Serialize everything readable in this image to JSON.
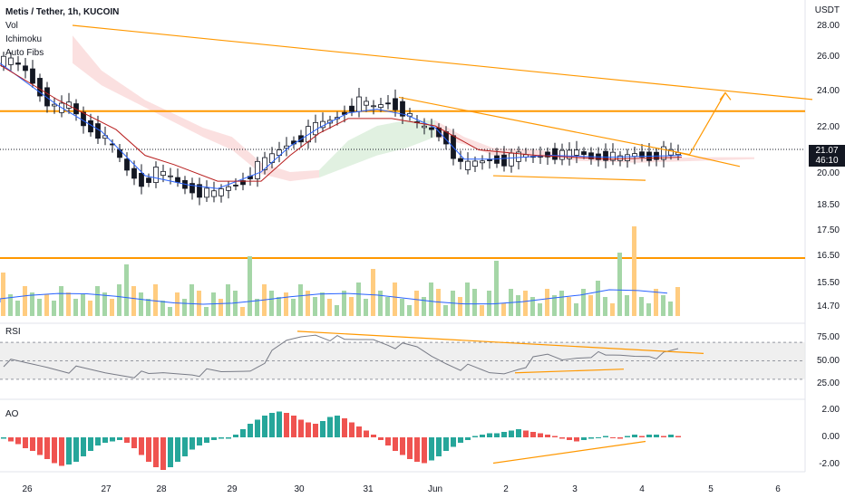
{
  "header": {
    "symbol_line": "Metis / Tether, 1h, KUCOIN",
    "indicators": [
      "Vol",
      "Ichimoku",
      "Auto Fibs"
    ],
    "price_unit": "USDT"
  },
  "current_price": {
    "value": "21.07",
    "countdown": "46:10"
  },
  "panes": {
    "rsi_label": "RSI",
    "ao_label": "AO"
  },
  "colors": {
    "bull": "#26a69a",
    "bear": "#ef5350",
    "drawing": "#ff9800",
    "tenkan": "#2962ff",
    "kijun": "#b71c1c",
    "cloud_bear": "#f7c6c6",
    "cloud_bull": "#c8e6c9",
    "vol_bull": "#a5d6a7",
    "vol_bear": "#ffcc80",
    "vol_ma": "#2962ff",
    "rsi_line": "#787b86"
  },
  "chart_data": {
    "type": "candlestick",
    "x_ticks": [
      "26",
      "27",
      "28",
      "29",
      "30",
      "31",
      "Jun",
      "2",
      "3",
      "4",
      "5",
      "6"
    ],
    "price_axis": {
      "ticks": [
        28.0,
        26.0,
        24.0,
        22.0,
        20.0,
        18.5,
        17.5,
        16.5,
        15.5,
        14.7
      ],
      "labels": [
        "28.00",
        "26.00",
        "24.00",
        "22.00",
        "20.00",
        "18.50",
        "17.50",
        "16.50",
        "15.50",
        "14.70"
      ]
    },
    "price_path": [
      [
        0,
        26.1
      ],
      [
        2,
        26.1
      ],
      [
        4,
        25.6
      ],
      [
        6,
        24.4
      ],
      [
        8,
        23.5
      ],
      [
        10,
        23.8
      ],
      [
        12,
        22.7
      ],
      [
        14,
        22.2
      ],
      [
        16,
        21.4
      ],
      [
        18,
        20.2
      ],
      [
        20,
        19.5
      ],
      [
        22,
        20.1
      ],
      [
        24,
        19.8
      ],
      [
        26,
        19.3
      ],
      [
        28,
        19.0
      ],
      [
        30,
        18.9
      ],
      [
        32,
        19.3
      ],
      [
        34,
        19.6
      ],
      [
        36,
        20.4
      ],
      [
        38,
        21.0
      ],
      [
        40,
        21.6
      ],
      [
        42,
        22.0
      ],
      [
        44,
        22.6
      ],
      [
        46,
        22.9
      ],
      [
        48,
        23.4
      ],
      [
        50,
        23.9
      ],
      [
        52,
        23.6
      ],
      [
        54,
        23.9
      ],
      [
        56,
        23.4
      ],
      [
        58,
        22.6
      ],
      [
        60,
        22.4
      ],
      [
        62,
        21.8
      ],
      [
        64,
        20.4
      ],
      [
        66,
        20.6
      ],
      [
        68,
        20.8
      ],
      [
        70,
        20.7
      ],
      [
        72,
        21.0
      ],
      [
        74,
        20.9
      ],
      [
        76,
        21.1
      ],
      [
        78,
        21.0
      ],
      [
        80,
        21.2
      ],
      [
        82,
        20.9
      ],
      [
        84,
        21.0
      ],
      [
        86,
        20.8
      ],
      [
        88,
        21.1
      ],
      [
        90,
        20.9
      ],
      [
        92,
        21.2
      ],
      [
        94,
        21.07
      ]
    ],
    "ichimoku": {
      "tenkan": [
        [
          0,
          26.0
        ],
        [
          8,
          23.7
        ],
        [
          14,
          22.3
        ],
        [
          20,
          19.9
        ],
        [
          26,
          19.4
        ],
        [
          30,
          19.2
        ],
        [
          36,
          20.1
        ],
        [
          40,
          21.5
        ],
        [
          44,
          22.5
        ],
        [
          48,
          23.3
        ],
        [
          52,
          23.5
        ],
        [
          56,
          23.2
        ],
        [
          60,
          22.5
        ],
        [
          64,
          20.8
        ],
        [
          68,
          20.8
        ],
        [
          76,
          21.0
        ],
        [
          84,
          20.9
        ],
        [
          94,
          21.0
        ]
      ],
      "kijun": [
        [
          0,
          25.9
        ],
        [
          8,
          24.0
        ],
        [
          16,
          22.4
        ],
        [
          20,
          21.0
        ],
        [
          24,
          20.5
        ],
        [
          30,
          19.6
        ],
        [
          36,
          19.6
        ],
        [
          40,
          21.0
        ],
        [
          44,
          22.2
        ],
        [
          48,
          23.0
        ],
        [
          54,
          23.0
        ],
        [
          60,
          22.6
        ],
        [
          66,
          21.3
        ],
        [
          74,
          21.0
        ],
        [
          84,
          20.8
        ],
        [
          94,
          20.9
        ]
      ],
      "cloud_a": [
        [
          10,
          27.5
        ],
        [
          14,
          25.6
        ],
        [
          20,
          24.0
        ],
        [
          28,
          22.5
        ],
        [
          32,
          22.0
        ],
        [
          36,
          20.6
        ],
        [
          40,
          20.1
        ],
        [
          44,
          20.2
        ],
        [
          48,
          21.8
        ],
        [
          52,
          22.6
        ],
        [
          56,
          22.9
        ],
        [
          60,
          22.9
        ],
        [
          64,
          22.0
        ],
        [
          68,
          21.4
        ],
        [
          74,
          21.3
        ],
        [
          80,
          21.0
        ],
        [
          88,
          20.8
        ],
        [
          96,
          20.9
        ],
        [
          104,
          20.9
        ]
      ],
      "cloud_b": [
        [
          10,
          26.0
        ],
        [
          14,
          24.8
        ],
        [
          20,
          23.6
        ],
        [
          28,
          22.0
        ],
        [
          32,
          21.3
        ],
        [
          36,
          20.0
        ],
        [
          40,
          19.6
        ],
        [
          44,
          19.8
        ],
        [
          48,
          20.4
        ],
        [
          52,
          21.0
        ],
        [
          56,
          21.4
        ],
        [
          60,
          22.0
        ],
        [
          64,
          21.6
        ],
        [
          68,
          21.0
        ],
        [
          74,
          20.9
        ],
        [
          80,
          20.7
        ],
        [
          88,
          20.6
        ],
        [
          96,
          20.7
        ],
        [
          104,
          20.8
        ]
      ]
    },
    "levels": [
      23.4,
      16.5
    ],
    "trendlines": [
      {
        "from": [
          10,
          28.05
        ],
        "to": [
          112,
          24.03
        ]
      },
      {
        "from": [
          55,
          24.15
        ],
        "to": [
          95,
          21.05
        ]
      },
      {
        "from": [
          68,
          19.9
        ],
        "to": [
          89,
          19.65
        ]
      },
      {
        "from": [
          93,
          21.2
        ],
        "to": [
          102,
          20.4
        ]
      },
      {
        "from": [
          95,
          21.0
        ],
        "to": [
          100,
          24.4
        ]
      }
    ],
    "volume_bars": 94,
    "rsi": {
      "axis": [
        75.0,
        50.0,
        25.0
      ],
      "band": [
        70,
        30
      ],
      "path": [
        [
          0,
          48
        ],
        [
          3,
          46
        ],
        [
          6,
          44
        ],
        [
          10,
          40
        ],
        [
          14,
          37
        ],
        [
          18,
          36
        ],
        [
          20,
          33
        ],
        [
          22,
          36
        ],
        [
          26,
          38
        ],
        [
          30,
          36
        ],
        [
          34,
          41
        ],
        [
          37,
          57
        ],
        [
          39,
          70
        ],
        [
          41,
          76
        ],
        [
          43,
          80
        ],
        [
          45,
          76
        ],
        [
          47,
          70
        ],
        [
          49,
          72
        ],
        [
          51,
          74
        ],
        [
          53,
          70
        ],
        [
          55,
          65
        ],
        [
          57,
          63
        ],
        [
          59,
          55
        ],
        [
          61,
          49
        ],
        [
          63,
          44
        ],
        [
          65,
          40
        ],
        [
          67,
          36
        ],
        [
          69,
          37
        ],
        [
          71,
          44
        ],
        [
          73,
          50
        ],
        [
          75,
          55
        ],
        [
          77,
          51
        ],
        [
          79,
          55
        ],
        [
          81,
          58
        ],
        [
          83,
          53
        ],
        [
          85,
          55
        ],
        [
          87,
          56
        ],
        [
          89,
          58
        ],
        [
          91,
          55
        ],
        [
          93,
          61
        ],
        [
          94,
          57
        ]
      ],
      "trendlines": [
        {
          "from": [
            41,
            82
          ],
          "to": [
            97,
            58
          ]
        },
        {
          "from": [
            71,
            37
          ],
          "to": [
            86,
            41
          ]
        }
      ]
    },
    "ao": {
      "axis": [
        2.0,
        0.0,
        -2.0
      ],
      "ylim": [
        -2.6,
        2.6
      ],
      "values": [
        -0.1,
        -0.3,
        -0.5,
        -0.8,
        -1.0,
        -1.3,
        -1.6,
        -1.9,
        -2.1,
        -2.0,
        -1.8,
        -1.4,
        -1.0,
        -0.6,
        -0.4,
        -0.3,
        -0.2,
        -0.4,
        -0.8,
        -1.3,
        -1.8,
        -2.2,
        -2.4,
        -2.2,
        -1.8,
        -1.4,
        -0.9,
        -0.6,
        -0.4,
        -0.2,
        -0.1,
        -0.1,
        0.2,
        0.6,
        1.0,
        1.3,
        1.6,
        1.8,
        1.9,
        1.8,
        1.6,
        1.3,
        1.1,
        1.0,
        1.2,
        1.5,
        1.6,
        1.4,
        1.1,
        0.8,
        0.5,
        0.2,
        -0.2,
        -0.6,
        -1.0,
        -1.3,
        -1.6,
        -1.8,
        -1.9,
        -1.7,
        -1.4,
        -1.0,
        -0.7,
        -0.4,
        -0.2,
        0.1,
        0.2,
        0.3,
        0.3,
        0.4,
        0.5,
        0.6,
        0.5,
        0.4,
        0.3,
        0.2,
        0.1,
        -0.1,
        -0.2,
        -0.3,
        -0.2,
        -0.1,
        0.0,
        0.1,
        0.0,
        -0.1,
        0.1,
        0.2,
        0.1,
        0.2,
        0.2,
        0.1,
        0.2,
        0.1
      ],
      "trendline": {
        "from": [
          68,
          -1.9
        ],
        "to": [
          89,
          -0.3
        ]
      }
    }
  }
}
